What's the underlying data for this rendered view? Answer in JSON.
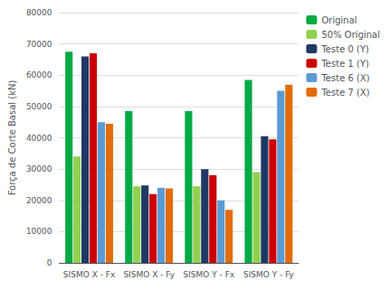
{
  "chart_data": {
    "type": "bar",
    "categories": [
      "SISMO X - Fx",
      "SISMO X - Fy",
      "SISMO Y - Fx",
      "SISMO Y - Fy"
    ],
    "series": [
      {
        "name": "Original",
        "color": "#00AA44",
        "values": [
          67500,
          48500,
          48500,
          58500
        ]
      },
      {
        "name": "50% Original",
        "color": "#92D050",
        "values": [
          34000,
          24500,
          24500,
          29000
        ]
      },
      {
        "name": "Teste 0 (Y)",
        "color": "#1F3864",
        "values": [
          66000,
          24800,
          30000,
          40500
        ]
      },
      {
        "name": "Teste 1 (Y)",
        "color": "#CC0000",
        "values": [
          67000,
          22000,
          28000,
          39500
        ]
      },
      {
        "name": "Teste 6 (X)",
        "color": "#5B9BD5",
        "values": [
          45000,
          24000,
          20000,
          55000
        ]
      },
      {
        "name": "Teste 7 (X)",
        "color": "#E36C09",
        "values": [
          44500,
          23800,
          17000,
          57000
        ]
      }
    ],
    "ylabel": "Força de Corte Basal (kN)",
    "ylim": [
      0,
      80000
    ],
    "yticks": [
      0,
      10000,
      20000,
      30000,
      40000,
      50000,
      60000,
      70000,
      80000
    ],
    "grid": true,
    "legend": "upper right"
  }
}
